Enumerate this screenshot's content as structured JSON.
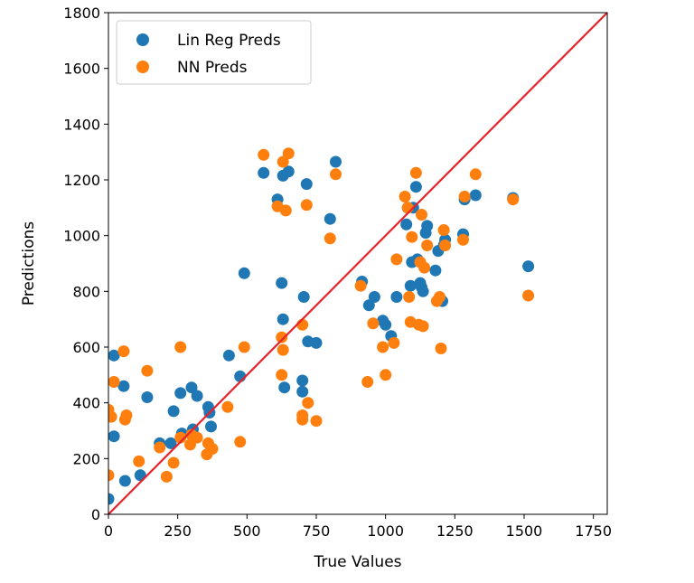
{
  "chart_data": {
    "type": "scatter",
    "xlabel": "True Values",
    "ylabel": "Predictions",
    "xlim": [
      0,
      1800
    ],
    "ylim": [
      0,
      1800
    ],
    "x_ticks": [
      0,
      250,
      500,
      750,
      1000,
      1250,
      1500,
      1750
    ],
    "y_ticks": [
      0,
      200,
      400,
      600,
      800,
      1000,
      1200,
      1400,
      1600,
      1800
    ],
    "grid": false,
    "legend_position": "top-left",
    "reference_line": {
      "from": [
        0,
        0
      ],
      "to": [
        1800,
        1800
      ],
      "color": "#e8222a"
    },
    "series": [
      {
        "name": "Lin Reg Preds",
        "color": "#1f77b4",
        "points": [
          [
            0,
            55
          ],
          [
            20,
            570
          ],
          [
            20,
            280
          ],
          [
            55,
            460
          ],
          [
            60,
            120
          ],
          [
            115,
            140
          ],
          [
            140,
            420
          ],
          [
            185,
            255
          ],
          [
            225,
            255
          ],
          [
            235,
            370
          ],
          [
            260,
            435
          ],
          [
            265,
            290
          ],
          [
            300,
            455
          ],
          [
            305,
            305
          ],
          [
            320,
            425
          ],
          [
            360,
            385
          ],
          [
            365,
            365
          ],
          [
            370,
            315
          ],
          [
            435,
            570
          ],
          [
            475,
            495
          ],
          [
            490,
            865
          ],
          [
            560,
            1225
          ],
          [
            610,
            1130
          ],
          [
            625,
            830
          ],
          [
            630,
            700
          ],
          [
            630,
            1215
          ],
          [
            635,
            455
          ],
          [
            650,
            1230
          ],
          [
            700,
            440
          ],
          [
            700,
            480
          ],
          [
            705,
            780
          ],
          [
            715,
            1185
          ],
          [
            720,
            620
          ],
          [
            750,
            615
          ],
          [
            800,
            1060
          ],
          [
            820,
            1265
          ],
          [
            915,
            835
          ],
          [
            940,
            750
          ],
          [
            960,
            780
          ],
          [
            990,
            695
          ],
          [
            1000,
            680
          ],
          [
            1020,
            640
          ],
          [
            1040,
            780
          ],
          [
            1075,
            1040
          ],
          [
            1080,
            1100
          ],
          [
            1090,
            820
          ],
          [
            1095,
            905
          ],
          [
            1100,
            1100
          ],
          [
            1110,
            1175
          ],
          [
            1115,
            915
          ],
          [
            1125,
            830
          ],
          [
            1130,
            815
          ],
          [
            1135,
            800
          ],
          [
            1145,
            1010
          ],
          [
            1150,
            1035
          ],
          [
            1180,
            875
          ],
          [
            1190,
            945
          ],
          [
            1205,
            765
          ],
          [
            1210,
            965
          ],
          [
            1215,
            985
          ],
          [
            1280,
            1005
          ],
          [
            1285,
            1130
          ],
          [
            1325,
            1145
          ],
          [
            1460,
            1135
          ],
          [
            1515,
            890
          ]
        ]
      },
      {
        "name": "NN Preds",
        "color": "#ff7f0e",
        "points": [
          [
            0,
            140
          ],
          [
            0,
            375
          ],
          [
            10,
            350
          ],
          [
            20,
            475
          ],
          [
            55,
            585
          ],
          [
            60,
            340
          ],
          [
            65,
            355
          ],
          [
            110,
            190
          ],
          [
            140,
            515
          ],
          [
            185,
            240
          ],
          [
            210,
            135
          ],
          [
            235,
            185
          ],
          [
            260,
            275
          ],
          [
            260,
            600
          ],
          [
            295,
            250
          ],
          [
            300,
            285
          ],
          [
            320,
            275
          ],
          [
            355,
            215
          ],
          [
            360,
            255
          ],
          [
            375,
            235
          ],
          [
            430,
            385
          ],
          [
            475,
            260
          ],
          [
            490,
            600
          ],
          [
            560,
            1290
          ],
          [
            610,
            1105
          ],
          [
            625,
            635
          ],
          [
            625,
            500
          ],
          [
            630,
            590
          ],
          [
            630,
            1265
          ],
          [
            640,
            1090
          ],
          [
            650,
            1295
          ],
          [
            700,
            355
          ],
          [
            700,
            340
          ],
          [
            700,
            680
          ],
          [
            715,
            1110
          ],
          [
            720,
            400
          ],
          [
            750,
            335
          ],
          [
            800,
            990
          ],
          [
            820,
            1220
          ],
          [
            910,
            820
          ],
          [
            935,
            475
          ],
          [
            955,
            685
          ],
          [
            990,
            600
          ],
          [
            1000,
            500
          ],
          [
            1030,
            615
          ],
          [
            1040,
            915
          ],
          [
            1070,
            1140
          ],
          [
            1080,
            1100
          ],
          [
            1085,
            780
          ],
          [
            1090,
            690
          ],
          [
            1095,
            995
          ],
          [
            1110,
            1225
          ],
          [
            1120,
            680
          ],
          [
            1125,
            905
          ],
          [
            1130,
            1075
          ],
          [
            1135,
            675
          ],
          [
            1140,
            885
          ],
          [
            1150,
            965
          ],
          [
            1185,
            765
          ],
          [
            1195,
            780
          ],
          [
            1200,
            595
          ],
          [
            1210,
            1020
          ],
          [
            1215,
            965
          ],
          [
            1280,
            985
          ],
          [
            1285,
            1140
          ],
          [
            1325,
            1220
          ],
          [
            1460,
            1130
          ],
          [
            1515,
            785
          ]
        ]
      }
    ]
  }
}
